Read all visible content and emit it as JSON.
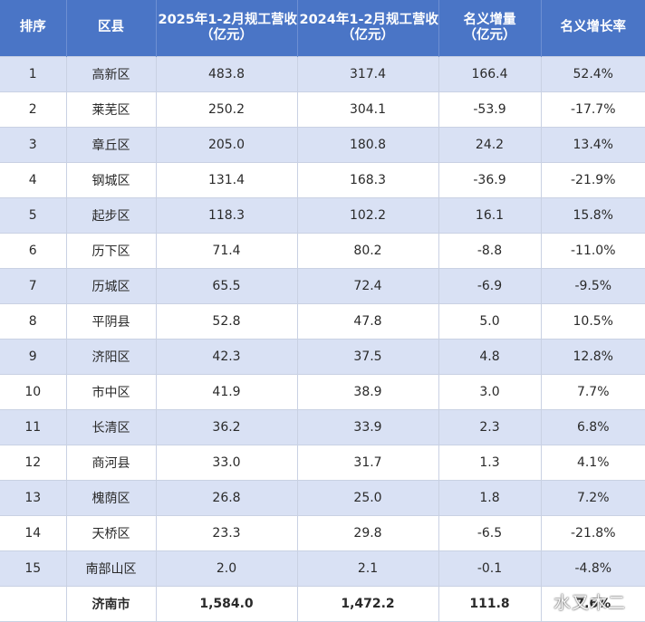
{
  "headers": [
    [
      "排序"
    ],
    [
      "区县"
    ],
    [
      "2025年1-2月规工营收",
      "（亿元）"
    ],
    [
      "2024年1-2月规工营收",
      "（亿元）"
    ],
    [
      "名义增量",
      "（亿元）"
    ],
    [
      "名义增长率"
    ]
  ],
  "rows": [
    [
      "1",
      "高新区",
      "483.8",
      "317.4",
      "166.4",
      "52.4%"
    ],
    [
      "2",
      "莱芜区",
      "250.2",
      "304.1",
      "-53.9",
      "-17.7%"
    ],
    [
      "3",
      "章丘区",
      "205.0",
      "180.8",
      "24.2",
      "13.4%"
    ],
    [
      "4",
      "钢城区",
      "131.4",
      "168.3",
      "-36.9",
      "-21.9%"
    ],
    [
      "5",
      "起步区",
      "118.3",
      "102.2",
      "16.1",
      "15.8%"
    ],
    [
      "6",
      "历下区",
      "71.4",
      "80.2",
      "-8.8",
      "-11.0%"
    ],
    [
      "7",
      "历城区",
      "65.5",
      "72.4",
      "-6.9",
      "-9.5%"
    ],
    [
      "8",
      "平阴县",
      "52.8",
      "47.8",
      "5.0",
      "10.5%"
    ],
    [
      "9",
      "济阳区",
      "42.3",
      "37.5",
      "4.8",
      "12.8%"
    ],
    [
      "10",
      "市中区",
      "41.9",
      "38.9",
      "3.0",
      "7.7%"
    ],
    [
      "11",
      "长清区",
      "36.2",
      "33.9",
      "2.3",
      "6.8%"
    ],
    [
      "12",
      "商河县",
      "33.0",
      "31.7",
      "1.3",
      "4.1%"
    ],
    [
      "13",
      "槐荫区",
      "26.8",
      "25.0",
      "1.8",
      "7.2%"
    ],
    [
      "14",
      "天桥区",
      "23.3",
      "29.8",
      "-6.5",
      "-21.8%"
    ],
    [
      "15",
      "南部山区",
      "2.0",
      "2.1",
      "-0.1",
      "-4.8%"
    ]
  ],
  "total": [
    "",
    "济南市",
    "1,584.0",
    "1,472.2",
    "111.8",
    "7.6%"
  ],
  "watermark": "水又木二"
}
